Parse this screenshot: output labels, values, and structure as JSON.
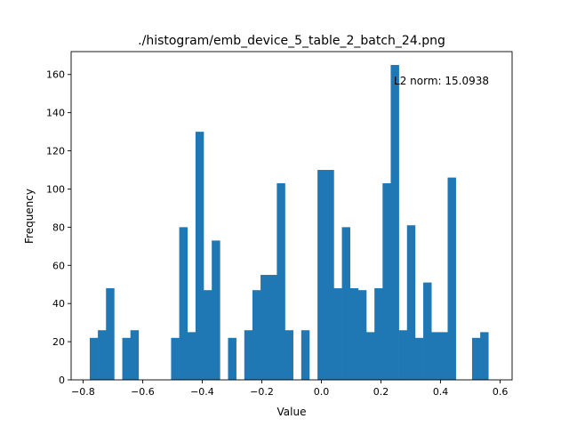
{
  "chart_data": {
    "type": "bar",
    "title": "./histogram/emb_device_5_table_2_batch_24.png",
    "xlabel": "Value",
    "ylabel": "Frequency",
    "annotation": "L2 norm: 15.0938",
    "xlim": [
      -0.84,
      0.64
    ],
    "ylim": [
      0,
      172
    ],
    "xticks": [
      -0.8,
      -0.6,
      -0.4,
      -0.2,
      0.0,
      0.2,
      0.4,
      0.6
    ],
    "xtick_labels": [
      "−0.8",
      "−0.6",
      "−0.4",
      "−0.2",
      "0.0",
      "0.2",
      "0.4",
      "0.6"
    ],
    "yticks": [
      0,
      20,
      40,
      60,
      80,
      100,
      120,
      140,
      160
    ],
    "ytick_labels": [
      "0",
      "20",
      "40",
      "60",
      "80",
      "100",
      "120",
      "140",
      "160"
    ],
    "bar_color": "#1f77b4",
    "grid": false,
    "bin_start": -0.7775,
    "bin_width": 0.0273,
    "values": [
      22,
      26,
      48,
      0,
      22,
      26,
      0,
      0,
      0,
      0,
      22,
      80,
      25,
      130,
      47,
      73,
      0,
      22,
      0,
      26,
      47,
      55,
      55,
      103,
      26,
      0,
      26,
      0,
      110,
      110,
      48,
      80,
      48,
      47,
      25,
      48,
      103,
      165,
      26,
      81,
      22,
      51,
      25,
      25,
      106,
      0,
      0,
      22,
      25
    ]
  }
}
